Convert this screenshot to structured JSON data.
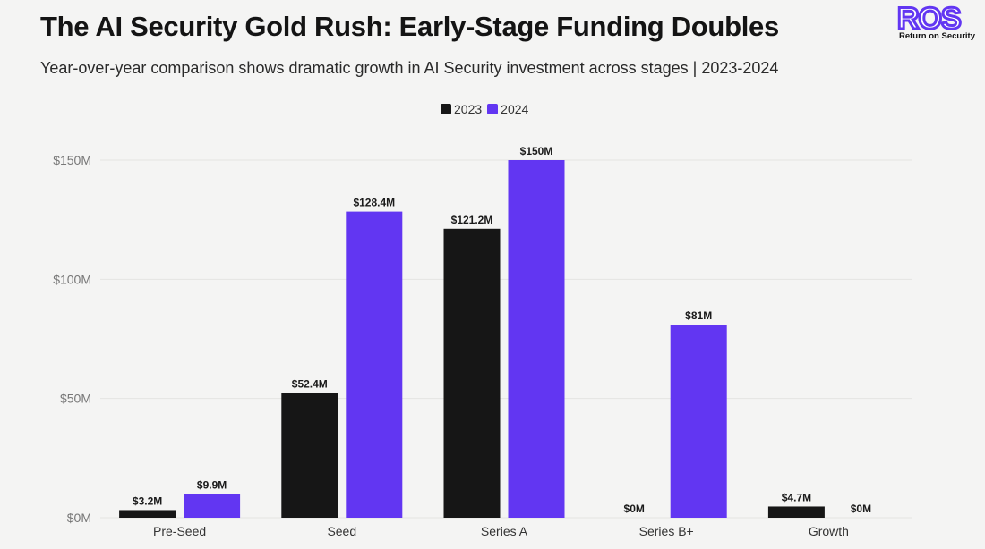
{
  "title": "The AI Security Gold Rush: Early-Stage Funding Doubles",
  "subtitle": "Year-over-year comparison shows dramatic growth in AI Security investment across stages | 2023-2024",
  "logo": {
    "text": "ROS",
    "tagline": "Return on Security"
  },
  "colors": {
    "2023": "#161616",
    "2024": "#6236f2",
    "logo": "#6236f2"
  },
  "chart_data": {
    "type": "bar",
    "title": "The AI Security Gold Rush: Early-Stage Funding Doubles",
    "xlabel": "",
    "ylabel": "",
    "categories": [
      "Pre-Seed",
      "Seed",
      "Series A",
      "Series B+",
      "Growth"
    ],
    "series": [
      {
        "name": "2023",
        "values": [
          3.2,
          52.4,
          121.2,
          0,
          4.7
        ],
        "labels": [
          "$3.2M",
          "$52.4M",
          "$121.2M",
          "$0M",
          "$4.7M"
        ]
      },
      {
        "name": "2024",
        "values": [
          9.9,
          128.4,
          150,
          81,
          0
        ],
        "labels": [
          "$9.9M",
          "$128.4M",
          "$150M",
          "$81M",
          "$0M"
        ]
      }
    ],
    "ylim": [
      0,
      150
    ],
    "yticks": [
      0,
      50,
      100,
      150
    ],
    "ytick_labels": [
      "$0M",
      "$50M",
      "$100M",
      "$150M"
    ],
    "grid": true,
    "legend": "top-center"
  }
}
